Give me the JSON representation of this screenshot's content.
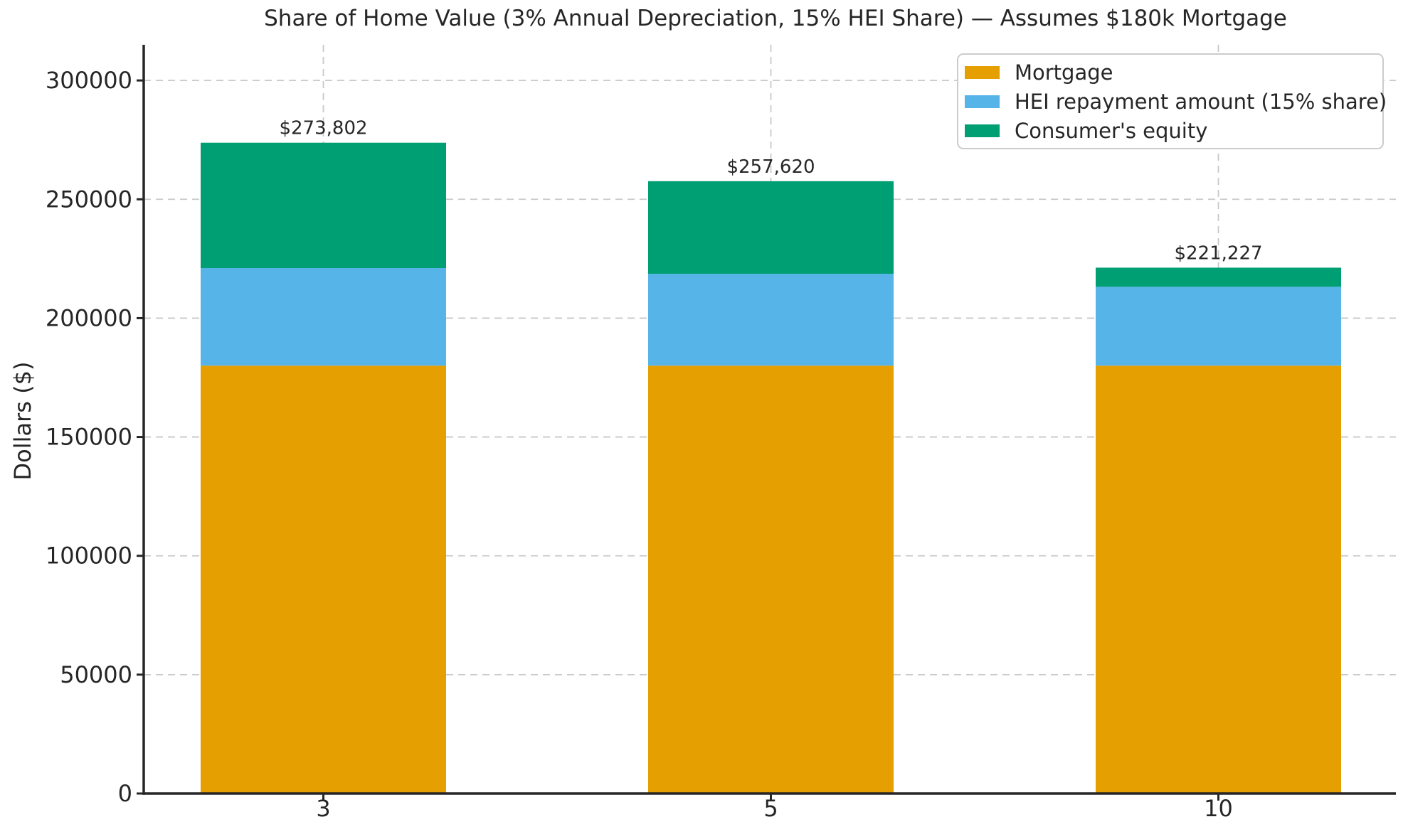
{
  "figure": {
    "title": "Share of Home Value (3% Annual Depreciation, 15% HEI Share) — Assumes $180k Mortgage",
    "ylabel": "Dollars ($)",
    "background_color": "#ffffff",
    "text_color": "#262626",
    "spine_color": "#262626",
    "grid_color": "#c9c9c9"
  },
  "legend": {
    "position": "upper right",
    "items": [
      {
        "label": "Mortgage",
        "color": "#E69F00"
      },
      {
        "label": "HEI repayment amount (15% share)",
        "color": "#56B4E9"
      },
      {
        "label": "Consumer's equity",
        "color": "#009E73"
      }
    ]
  },
  "chart_data": {
    "type": "bar",
    "stacked": true,
    "title": "Share of Home Value (3% Annual Depreciation, 15% HEI Share) — Assumes $180k Mortgage",
    "xlabel": "",
    "ylabel": "Dollars ($)",
    "categories": [
      "3",
      "5",
      "10"
    ],
    "series": [
      {
        "name": "Mortgage",
        "color": "#E69F00",
        "values": [
          180000,
          180000,
          180000
        ]
      },
      {
        "name": "HEI repayment amount (15% share)",
        "color": "#56B4E9",
        "values": [
          41070,
          38643,
          33184
        ]
      },
      {
        "name": "Consumer's equity",
        "color": "#009E73",
        "values": [
          52732,
          38977,
          8043
        ]
      }
    ],
    "totals": [
      273802,
      257620,
      221227
    ],
    "total_labels": [
      "$273,802",
      "$257,620",
      "$221,227"
    ],
    "yticks": [
      0,
      50000,
      100000,
      150000,
      200000,
      250000,
      300000
    ],
    "ytick_labels": [
      "0",
      "50000",
      "100000",
      "150000",
      "200000",
      "250000",
      "300000"
    ],
    "ylim": [
      0,
      315000
    ],
    "grid": true,
    "grid_style": "dashed",
    "legend_position": "upper right"
  }
}
